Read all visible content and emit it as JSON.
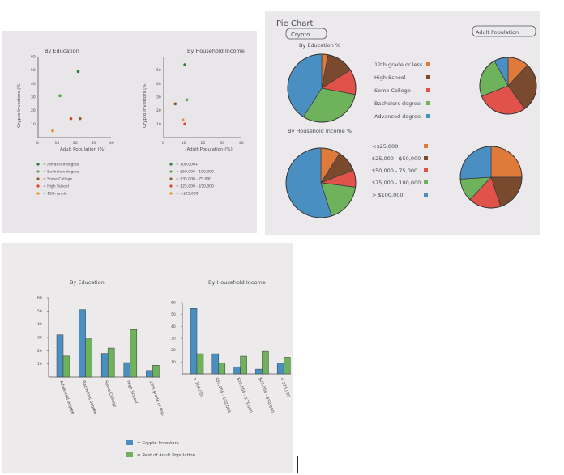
{
  "chart_data": [
    {
      "type": "scatter",
      "title": "By Education",
      "xlabel": "Adult Population (%)",
      "ylabel": "Crypto Investors (%)",
      "xlim": [
        0,
        40
      ],
      "ylim": [
        0,
        60
      ],
      "x_ticks": [
        0,
        10,
        20,
        30,
        40
      ],
      "y_ticks": [
        10,
        20,
        30,
        40,
        50,
        60
      ],
      "series": [
        {
          "name": "= Advanced degree",
          "color": "#2f7a3c",
          "x": 22,
          "y": 49
        },
        {
          "name": "= Bachelors degree",
          "color": "#5aa84a",
          "x": 12,
          "y": 31
        },
        {
          "name": "= Some College",
          "color": "#8b5a2b",
          "x": 23,
          "y": 14
        },
        {
          "name": "= High School",
          "color": "#d9432e",
          "x": 18,
          "y": 14
        },
        {
          "name": "= 12th grade",
          "color": "#e88d2a",
          "x": 8,
          "y": 5
        }
      ]
    },
    {
      "type": "scatter",
      "title": "By Household Income",
      "xlabel": "Adult Population (%)",
      "ylabel": "Crypto Investors (%)",
      "xlim": [
        0,
        40
      ],
      "ylim": [
        0,
        60
      ],
      "x_ticks": [
        0,
        10,
        20,
        30,
        40
      ],
      "y_ticks": [
        10,
        20,
        30,
        40,
        50
      ],
      "series": [
        {
          "name": "= 100,000+",
          "color": "#2f7a3c",
          "x": 11,
          "y": 54
        },
        {
          "name": "= $50,000 - 100,000",
          "color": "#5aa84a",
          "x": 12,
          "y": 28
        },
        {
          "name": "= $35,000 - 75,000",
          "color": "#8b5a2b",
          "x": 6,
          "y": 25
        },
        {
          "name": "= $25,000 - $50,000",
          "color": "#d9432e",
          "x": 11,
          "y": 10
        },
        {
          "name": "= <$25,000",
          "color": "#e88d2a",
          "x": 10,
          "y": 13
        }
      ]
    },
    {
      "type": "pie",
      "title": "Pie Chart",
      "labels": [
        "Crypto",
        "Adult Population"
      ],
      "groups": [
        {
          "label": "By Education %",
          "categories": [
            "12th grade or less",
            "High School",
            "Some College",
            "Bachelors degree",
            "Advanced degree"
          ],
          "colors": [
            "#e07a3a",
            "#7a4a2e",
            "#e0524a",
            "#6fb25c",
            "#4a8fc2"
          ],
          "crypto": [
            3,
            13,
            12,
            31,
            41
          ],
          "adult": [
            12,
            28,
            29,
            23,
            8
          ]
        },
        {
          "label": "By Household Income %",
          "categories": [
            "<$25,000",
            "$25,000 - $50,000",
            "$50,000 - 75,000",
            "$75,000 - 100,000",
            "> $100,000"
          ],
          "colors": [
            "#e07a3a",
            "#7a4a2e",
            "#e0524a",
            "#6fb25c",
            "#4a8fc2"
          ],
          "crypto": [
            9,
            10,
            8,
            18,
            55
          ],
          "adult": [
            25,
            20,
            17,
            12,
            26
          ]
        }
      ]
    },
    {
      "type": "bar",
      "title": "By Education",
      "ylim": [
        0,
        60
      ],
      "y_ticks": [
        10,
        20,
        30,
        40,
        50,
        60
      ],
      "categories": [
        "Advanced degree",
        "Bachelors degree",
        "Some College",
        "High School",
        "12th grade or less"
      ],
      "series": [
        {
          "name": "= Crypto Investors",
          "color": "#4a8fc2",
          "values": [
            32,
            51,
            18,
            11,
            5
          ]
        },
        {
          "name": "= Rest of Adult Population",
          "color": "#6fb25c",
          "values": [
            16,
            29,
            22,
            36,
            9
          ]
        }
      ]
    },
    {
      "type": "bar",
      "title": "By Household Income",
      "ylim": [
        0,
        60
      ],
      "y_ticks": [
        10,
        20,
        30,
        40,
        50,
        60
      ],
      "categories": [
        "> 100,000",
        "$50,000 - 100,000",
        "$50,000 - $75,000",
        "$25,000 - $50,000",
        "< $25,000"
      ],
      "series": [
        {
          "name": "= Crypto Investors",
          "color": "#4a8fc2",
          "values": [
            55,
            17,
            6,
            4,
            9
          ]
        },
        {
          "name": "= Rest of Adult Population",
          "color": "#6fb25c",
          "values": [
            17,
            9,
            15,
            19,
            14
          ]
        }
      ]
    }
  ]
}
